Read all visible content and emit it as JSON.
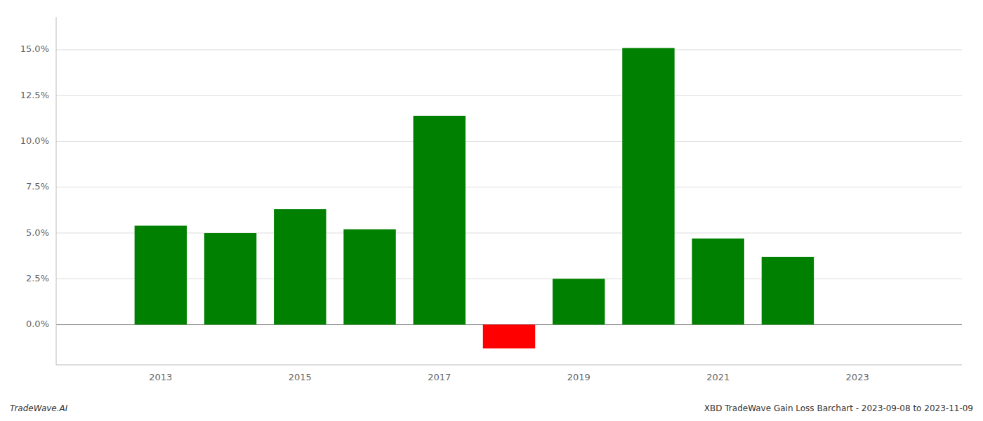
{
  "chart_data": {
    "type": "bar",
    "x": [
      2013,
      2014,
      2015,
      2016,
      2017,
      2018,
      2019,
      2020,
      2021,
      2022
    ],
    "values": [
      0.054,
      0.05,
      0.063,
      0.052,
      0.114,
      -0.013,
      0.025,
      0.151,
      0.047,
      0.037
    ],
    "colors": [
      "#008000",
      "#008000",
      "#008000",
      "#008000",
      "#008000",
      "#ff0000",
      "#008000",
      "#008000",
      "#008000",
      "#008000"
    ],
    "ylim": [
      -0.022,
      0.168
    ],
    "yticks": [
      {
        "value": 0.0,
        "label": "0.0%"
      },
      {
        "value": 0.025,
        "label": "2.5%"
      },
      {
        "value": 0.05,
        "label": "5.0%"
      },
      {
        "value": 0.075,
        "label": "7.5%"
      },
      {
        "value": 0.1,
        "label": "10.0%"
      },
      {
        "value": 0.125,
        "label": "12.5%"
      },
      {
        "value": 0.15,
        "label": "15.0%"
      }
    ],
    "xlim": [
      2011.5,
      2024.5
    ],
    "xticks": [
      2013,
      2015,
      2017,
      2019,
      2021,
      2023
    ],
    "grid": true,
    "annotations": [
      "TradeWave.AI",
      "XBD TradeWave Gain Loss Barchart - 2023-09-08 to 2023-11-09"
    ]
  }
}
